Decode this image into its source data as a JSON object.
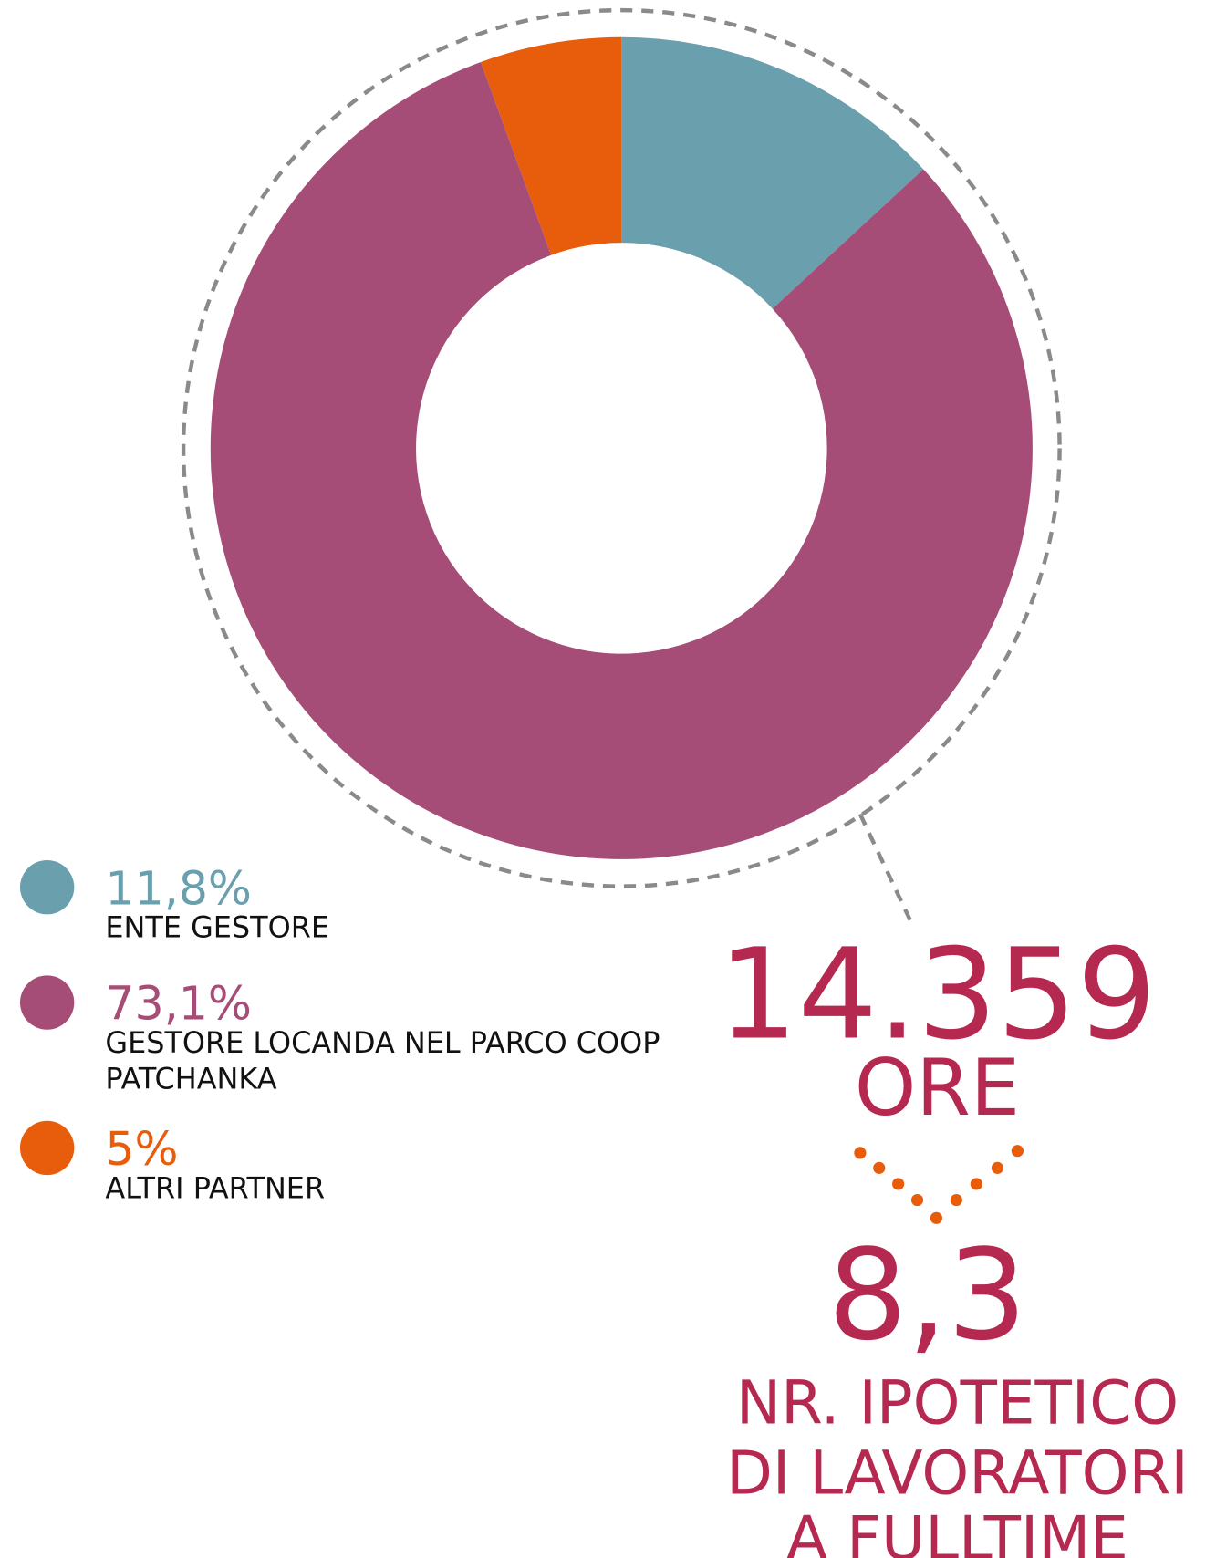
{
  "chart_data": {
    "type": "donut",
    "categories": [
      "ENTE GESTORE",
      "GESTORE LOCANDA NEL PARCO COOP PATCHANKA",
      "ALTRI PARTNER"
    ],
    "values": [
      11.8,
      73.1,
      5
    ],
    "value_labels": [
      "11,8%",
      "73,1%",
      "5%"
    ],
    "colors": [
      "#6a9fad",
      "#a54d77",
      "#e85d0c"
    ],
    "annotations": [
      "14.359",
      "ORE",
      "8,3",
      "NR. IPOTETICO",
      "DI LAVORATORI",
      "A FULLTIME"
    ]
  }
}
